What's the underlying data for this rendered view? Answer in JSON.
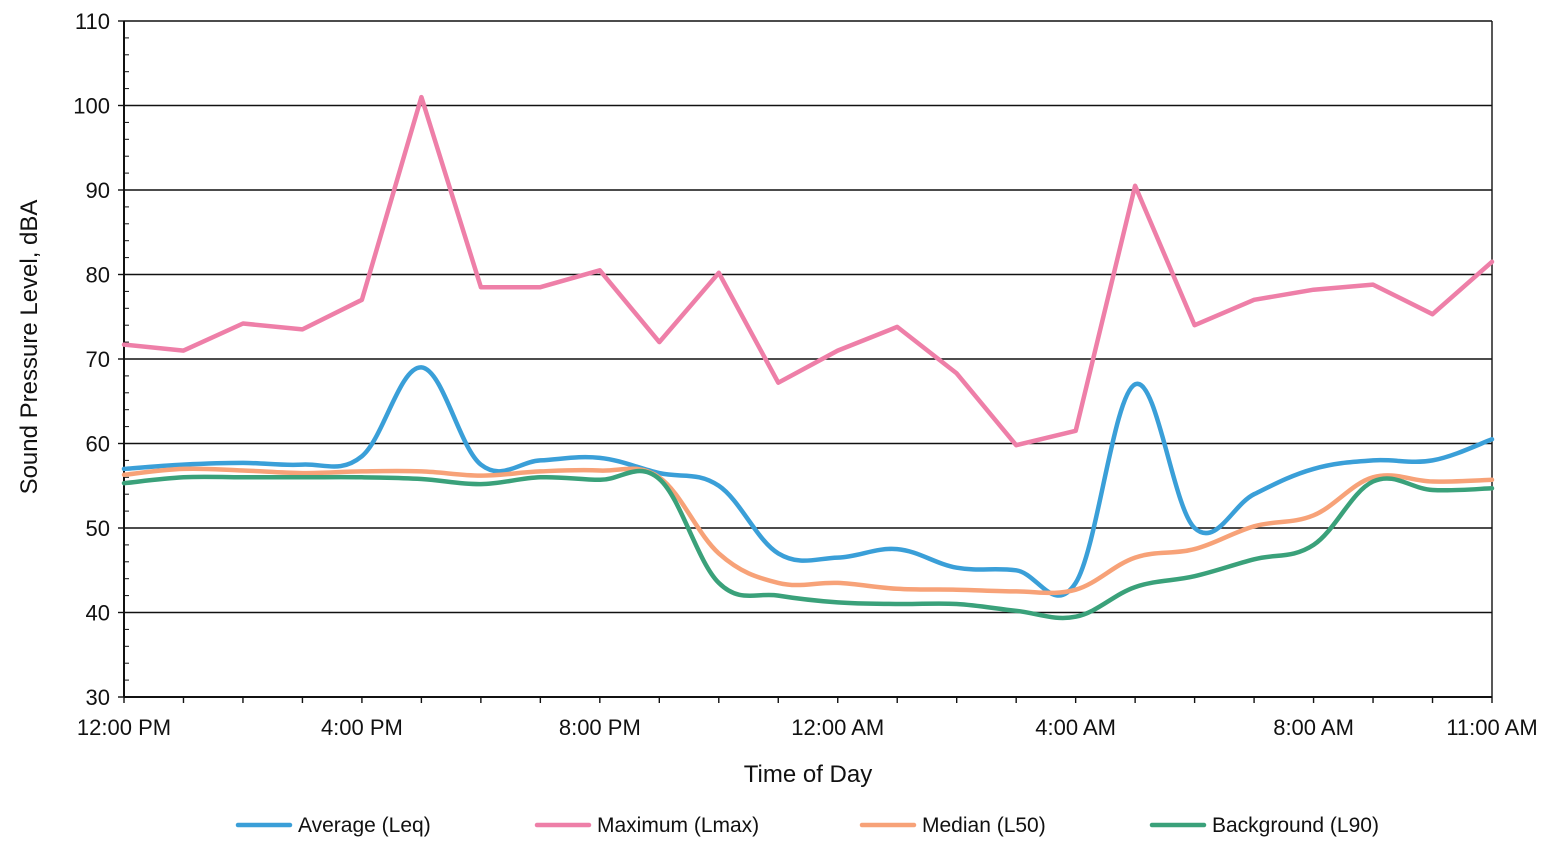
{
  "chart_data": {
    "type": "line",
    "xlabel": "Time of Day",
    "ylabel": "Sound Pressure Level, dBA",
    "ylim": [
      30,
      110
    ],
    "yticks": [
      30,
      40,
      50,
      60,
      70,
      80,
      90,
      100,
      110
    ],
    "xlim": [
      0,
      23
    ],
    "x_tick_labels": [
      {
        "x": 0,
        "label": "12:00 PM"
      },
      {
        "x": 4,
        "label": "4:00 PM"
      },
      {
        "x": 8,
        "label": "8:00 PM"
      },
      {
        "x": 12,
        "label": "12:00 AM"
      },
      {
        "x": 16,
        "label": "4:00 AM"
      },
      {
        "x": 20,
        "label": "8:00 AM"
      },
      {
        "x": 23,
        "label": "11:00 AM"
      }
    ],
    "x": [
      0,
      1,
      2,
      3,
      4,
      5,
      6,
      7,
      8,
      9,
      10,
      11,
      12,
      13,
      14,
      15,
      16,
      17,
      18,
      19,
      20,
      21,
      22,
      23
    ],
    "grid": "horizontal",
    "legend_position": "bottom",
    "series": [
      {
        "name": "Average (Leq)",
        "color": "#3a9fd8",
        "values": [
          57,
          57.5,
          57.7,
          57.5,
          58.5,
          69,
          57.5,
          58,
          58.3,
          56.5,
          55,
          47,
          46.5,
          47.5,
          45.3,
          45,
          43.5,
          67,
          50,
          54,
          57,
          58,
          58,
          60.5
        ]
      },
      {
        "name": "Maximum (Lmax)",
        "color": "#ee7fa8",
        "values": [
          71.7,
          71,
          74.2,
          73.5,
          77,
          101,
          78.5,
          78.5,
          80.5,
          72,
          80.2,
          67.2,
          71,
          73.8,
          68.3,
          59.8,
          61.5,
          90.5,
          74,
          77,
          78.2,
          78.8,
          75.3,
          81.5
        ]
      },
      {
        "name": "Median (L50)",
        "color": "#f7a278",
        "values": [
          56.3,
          57,
          56.8,
          56.5,
          56.7,
          56.7,
          56.2,
          56.7,
          56.8,
          56,
          47,
          43.5,
          43.5,
          42.8,
          42.7,
          42.5,
          42.7,
          46.5,
          47.5,
          50.2,
          51.5,
          56,
          55.5,
          55.7
        ]
      },
      {
        "name": "Background (L90)",
        "color": "#3aa17a",
        "values": [
          55.3,
          56,
          56,
          56,
          56,
          55.8,
          55.2,
          56,
          55.7,
          55.8,
          43.5,
          42,
          41.2,
          41,
          41,
          40.2,
          39.5,
          43,
          44.3,
          46.3,
          48,
          55.5,
          54.5,
          54.7
        ]
      }
    ]
  }
}
